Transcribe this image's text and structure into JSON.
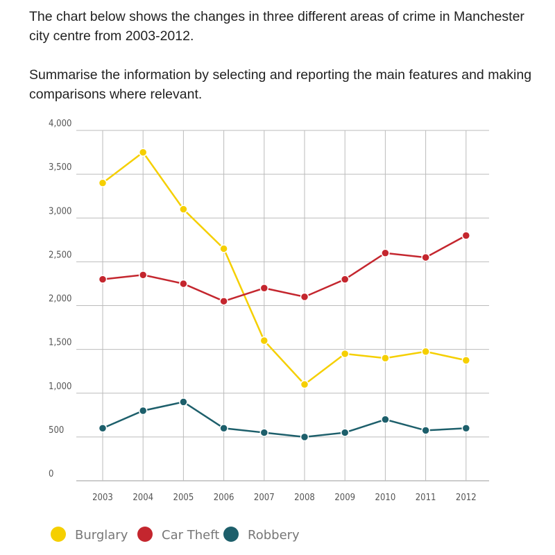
{
  "prompt": {
    "p1": "The chart below shows the changes in three different areas of crime in Manchester city centre from 2003-2012.",
    "p2": "Summarise the information by selecting and reporting the main features and making comparisons where relevant."
  },
  "chart_data": {
    "type": "line",
    "title": "",
    "xlabel": "",
    "ylabel": "",
    "categories": [
      "2003",
      "2004",
      "2005",
      "2006",
      "2007",
      "2008",
      "2009",
      "2010",
      "2011",
      "2012"
    ],
    "ylim": [
      0,
      4000
    ],
    "yticks": [
      "0",
      "500",
      "1,000",
      "1,500",
      "2,000",
      "2,500",
      "3,000",
      "3,500",
      "4,000"
    ],
    "grid": true,
    "legend_position": "bottom-left",
    "series": [
      {
        "name": "Burglary",
        "color": "#f5cf00",
        "values": [
          3400,
          3750,
          3100,
          2650,
          1600,
          1100,
          1450,
          1400,
          1475,
          1375
        ]
      },
      {
        "name": "Car Theft",
        "color": "#c4262e",
        "values": [
          2300,
          2350,
          2250,
          2050,
          2200,
          2100,
          2300,
          2600,
          2550,
          2800
        ]
      },
      {
        "name": "Robbery",
        "color": "#1d5f6b",
        "values": [
          600,
          800,
          900,
          600,
          550,
          500,
          550,
          700,
          575,
          600
        ]
      }
    ]
  }
}
